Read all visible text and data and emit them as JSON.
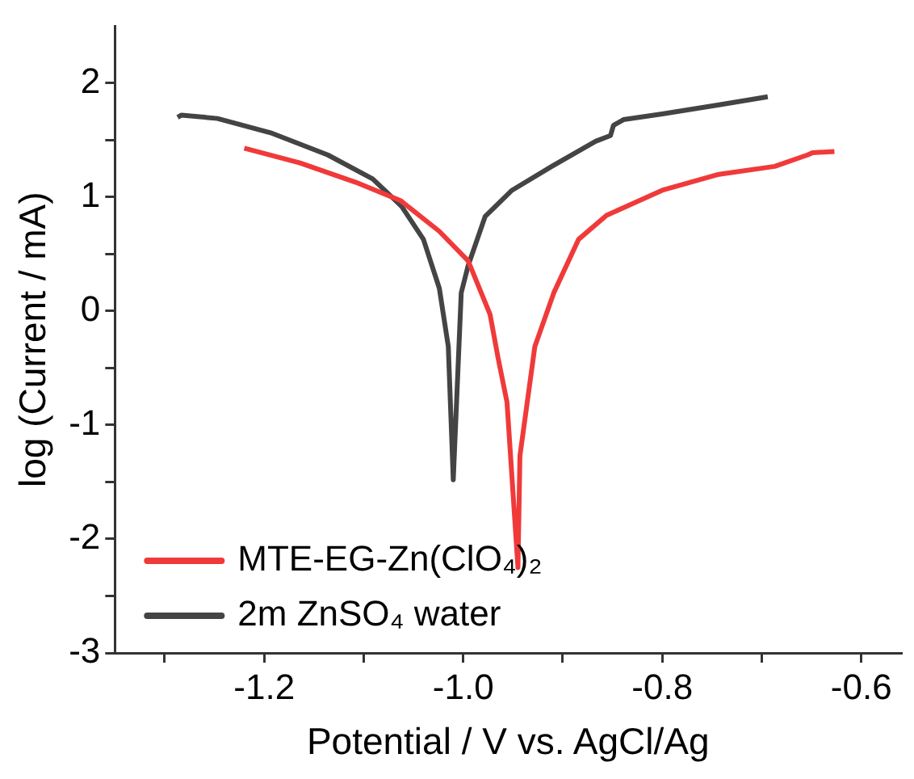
{
  "chart_data": {
    "type": "line",
    "xlabel": "Potential / V vs. AgCl/Ag",
    "ylabel": "log (Current / mA)",
    "xlim": [
      -1.35,
      -0.56
    ],
    "ylim": [
      -3,
      2.5
    ],
    "xticks": [
      {
        "value": -1.3,
        "label": null
      },
      -1.2,
      {
        "value": -1.1,
        "label": null
      },
      {
        "value": -1.0,
        "label": "-1.0"
      },
      {
        "value": -0.9,
        "label": null
      },
      -0.8,
      {
        "value": -0.7,
        "label": null
      },
      -0.6
    ],
    "yticks": [
      -3,
      {
        "value": -2.5,
        "label": null
      },
      -2,
      {
        "value": -1.5,
        "label": null
      },
      -1,
      {
        "value": -0.5,
        "label": null
      },
      0,
      {
        "value": 0.5,
        "label": null
      },
      1,
      {
        "value": 1.5,
        "label": null
      },
      2
    ],
    "grid": false,
    "legend": "bottom left",
    "marker": "none",
    "line_style": "solid",
    "series": [
      {
        "name": "MTE-EG-Zn(ClO₄)₂",
        "color": "#f03a3a",
        "x": [
          -1.22,
          -1.164,
          -1.108,
          -1.063,
          -1.024,
          -0.995,
          -0.973,
          -0.965,
          -0.956,
          -0.945,
          -0.943,
          -0.928,
          -0.909,
          -0.884,
          -0.856,
          -0.8,
          -0.743,
          -0.687,
          -0.654,
          -0.649,
          -0.627
        ],
        "values": [
          1.43,
          1.3,
          1.13,
          0.97,
          0.7,
          0.44,
          -0.03,
          -0.41,
          -0.8,
          -2.25,
          -1.27,
          -0.31,
          0.16,
          0.63,
          0.84,
          1.06,
          1.2,
          1.27,
          1.37,
          1.39,
          1.4
        ]
      },
      {
        "name": "2m ZnSO₄ water",
        "color": "#444444",
        "x": [
          -1.287,
          -1.283,
          -1.247,
          -1.192,
          -1.136,
          -1.091,
          -1.062,
          -1.04,
          -1.024,
          -1.015,
          -1.01,
          -1.002,
          -0.995,
          -0.978,
          -0.951,
          -0.911,
          -0.867,
          -0.852,
          -0.849,
          -0.839,
          -0.8,
          -0.743,
          -0.694
        ],
        "values": [
          1.7,
          1.72,
          1.69,
          1.56,
          1.37,
          1.16,
          0.92,
          0.63,
          0.2,
          -0.31,
          -1.48,
          0.16,
          0.4,
          0.83,
          1.06,
          1.27,
          1.49,
          1.54,
          1.63,
          1.68,
          1.73,
          1.81,
          1.88
        ]
      }
    ]
  }
}
